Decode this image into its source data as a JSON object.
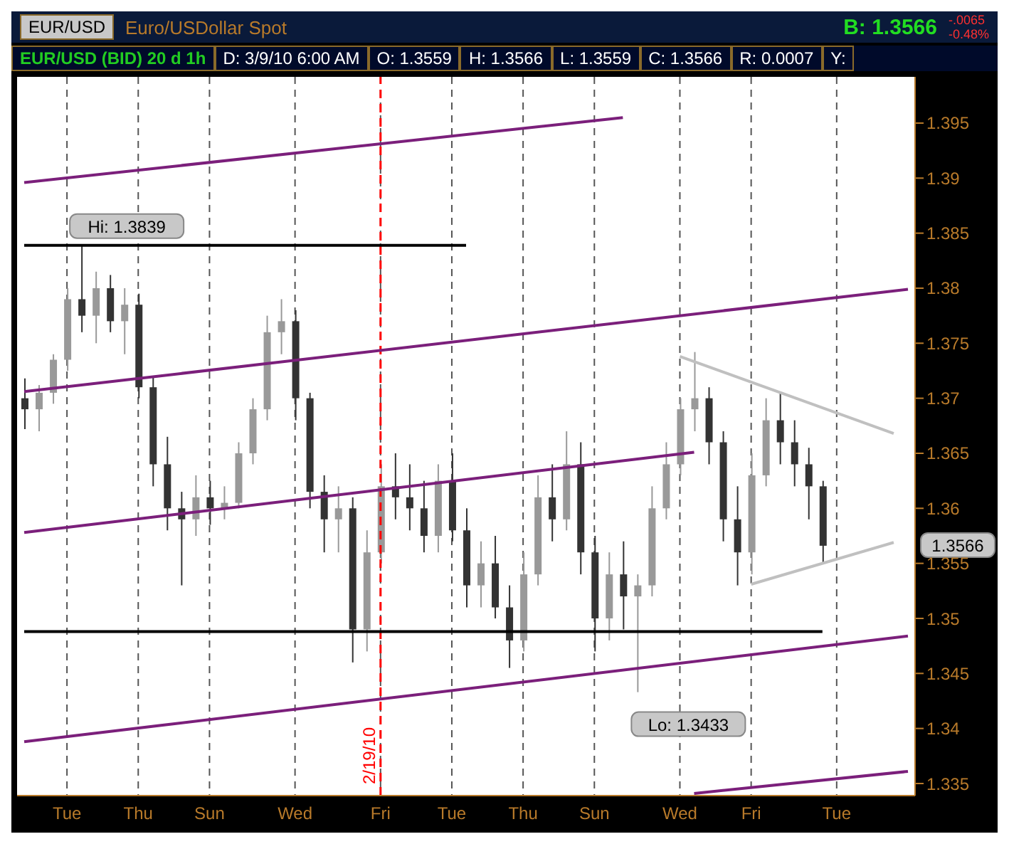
{
  "chart_data": {
    "type": "candlestick",
    "title": "EUR/USD (BID) 20 d 1h",
    "subtitle": "D: 3/9/10 6:00 AM",
    "annotations": [
      "EUR/USD",
      "Euro/USDollar Spot",
      "B: 1.3566",
      "-.0065",
      "-0.48%",
      "O: 1.3559",
      "H: 1.3566",
      "L: 1.3559",
      "C: 1.3566",
      "R: 0.0007",
      "Y:",
      "Hi: 1.3839",
      "Lo: 1.3433",
      "1.3566"
    ],
    "categories": [
      null,
      null,
      null,
      "Tue",
      null,
      null,
      null,
      null,
      "Thu",
      null,
      null,
      null,
      null,
      "Sun",
      null,
      null,
      null,
      null,
      null,
      "Wed",
      null,
      null,
      null,
      null,
      null,
      "Fri",
      null,
      null,
      null,
      null,
      "Tue",
      null,
      null,
      null,
      null,
      "Thu",
      null,
      null,
      null,
      null,
      "Sun",
      null,
      null,
      null,
      null,
      null,
      "Wed",
      null,
      null,
      null,
      null,
      "Fri",
      null,
      null,
      null,
      null,
      null,
      "Tue",
      null,
      null,
      null,
      null,
      null
    ],
    "ylim": [
      1.3339,
      1.3992
    ],
    "yticks": [
      1.335,
      1.34,
      1.345,
      1.35,
      1.355,
      1.36,
      1.365,
      1.37,
      1.375,
      1.38,
      1.385,
      1.39,
      1.395
    ],
    "grid": "x",
    "ref_lines": [
      {
        "axis": "x",
        "value": "Fri",
        "label": "2/19/10",
        "color": "#ff0000",
        "line_style": "dashed"
      }
    ],
    "series": [
      {
        "colors": [
          "#333333",
          "#999999",
          "#999999",
          "#999999",
          "#333333",
          "#999999",
          "#333333",
          "#999999",
          "#333333",
          "#333333",
          "#333333",
          "#333333",
          "#999999",
          "#333333",
          "#999999",
          "#999999",
          "#999999",
          "#999999",
          "#999999",
          "#333333",
          "#333333",
          "#333333",
          "#999999",
          "#333333",
          "#999999",
          "#999999",
          "#333333",
          "#333333",
          "#333333",
          "#999999",
          "#333333",
          "#333333",
          "#999999",
          "#333333",
          "#333333",
          "#999999",
          "#999999",
          "#333333",
          "#999999",
          "#333333",
          "#333333",
          "#999999",
          "#333333",
          "#999999",
          "#999999",
          "#999999",
          "#999999",
          "#999999",
          "#333333",
          "#333333",
          "#333333",
          "#999999",
          "#999999",
          "#333333",
          "#333333",
          "#333333",
          "#333333",
          null,
          null,
          null,
          null,
          null,
          null
        ],
        "ohlc": [
          [
            1.37,
            1.3718,
            1.3672,
            1.369
          ],
          [
            1.369,
            1.3712,
            1.367,
            1.3705
          ],
          [
            1.3705,
            1.374,
            1.3695,
            1.3735
          ],
          [
            1.3735,
            1.38,
            1.3725,
            1.379
          ],
          [
            1.379,
            1.3839,
            1.376,
            1.3775
          ],
          [
            1.3775,
            1.3815,
            1.375,
            1.38
          ],
          [
            1.38,
            1.3812,
            1.376,
            1.377
          ],
          [
            1.377,
            1.38,
            1.374,
            1.3785
          ],
          [
            1.3785,
            1.3795,
            1.37,
            1.371
          ],
          [
            1.371,
            1.372,
            1.362,
            1.364
          ],
          [
            1.364,
            1.3665,
            1.358,
            1.36
          ],
          [
            1.36,
            1.3615,
            1.353,
            1.359
          ],
          [
            1.359,
            1.363,
            1.3575,
            1.361
          ],
          [
            1.361,
            1.3625,
            1.3585,
            1.36
          ],
          [
            1.36,
            1.362,
            1.359,
            1.3605
          ],
          [
            1.3605,
            1.366,
            1.36,
            1.365
          ],
          [
            1.365,
            1.37,
            1.364,
            1.369
          ],
          [
            1.369,
            1.3775,
            1.368,
            1.376
          ],
          [
            1.376,
            1.379,
            1.374,
            1.377
          ],
          [
            1.377,
            1.378,
            1.368,
            1.37
          ],
          [
            1.37,
            1.3705,
            1.36,
            1.3615
          ],
          [
            1.3615,
            1.363,
            1.356,
            1.359
          ],
          [
            1.359,
            1.362,
            1.356,
            1.36
          ],
          [
            1.36,
            1.361,
            1.346,
            1.349
          ],
          [
            1.349,
            1.358,
            1.347,
            1.356
          ],
          [
            1.356,
            1.364,
            1.355,
            1.362
          ],
          [
            1.362,
            1.365,
            1.359,
            1.361
          ],
          [
            1.361,
            1.364,
            1.358,
            1.36
          ],
          [
            1.36,
            1.3625,
            1.356,
            1.3575
          ],
          [
            1.3575,
            1.364,
            1.356,
            1.3625
          ],
          [
            1.3625,
            1.365,
            1.357,
            1.358
          ],
          [
            1.358,
            1.36,
            1.351,
            1.353
          ],
          [
            1.353,
            1.357,
            1.351,
            1.355
          ],
          [
            1.355,
            1.3575,
            1.35,
            1.351
          ],
          [
            1.351,
            1.353,
            1.3455,
            1.348
          ],
          [
            1.348,
            1.356,
            1.347,
            1.354
          ],
          [
            1.354,
            1.363,
            1.353,
            1.361
          ],
          [
            1.361,
            1.364,
            1.357,
            1.359
          ],
          [
            1.359,
            1.367,
            1.358,
            1.364
          ],
          [
            1.364,
            1.366,
            1.354,
            1.356
          ],
          [
            1.356,
            1.3575,
            1.347,
            1.35
          ],
          [
            1.35,
            1.356,
            1.348,
            1.354
          ],
          [
            1.354,
            1.357,
            1.349,
            1.352
          ],
          [
            1.352,
            1.354,
            1.3433,
            1.353
          ],
          [
            1.353,
            1.362,
            1.352,
            1.36
          ],
          [
            1.36,
            1.366,
            1.359,
            1.364
          ],
          [
            1.364,
            1.37,
            1.363,
            1.369
          ],
          [
            1.369,
            1.3742,
            1.367,
            1.37
          ],
          [
            1.37,
            1.371,
            1.364,
            1.366
          ],
          [
            1.366,
            1.367,
            1.357,
            1.359
          ],
          [
            1.359,
            1.362,
            1.353,
            1.356
          ],
          [
            1.356,
            1.365,
            1.354,
            1.363
          ],
          [
            1.363,
            1.37,
            1.362,
            1.368
          ],
          [
            1.368,
            1.3705,
            1.364,
            1.366
          ],
          [
            1.366,
            1.368,
            1.362,
            1.364
          ],
          [
            1.364,
            1.3655,
            1.359,
            1.362
          ],
          [
            1.362,
            1.3625,
            1.355,
            1.3566
          ],
          null,
          null,
          null,
          null,
          null,
          null
        ]
      },
      {
        "type": "line",
        "color": "#7b1f7b",
        "values": [
          1.3896,
          null,
          null,
          null,
          null,
          null,
          null,
          null,
          null,
          null,
          null,
          null,
          null,
          null,
          null,
          null,
          null,
          null,
          null,
          null,
          null,
          null,
          null,
          null,
          null,
          null,
          null,
          null,
          null,
          null,
          null,
          null,
          null,
          null,
          null,
          null,
          null,
          null,
          null,
          null,
          null,
          null,
          1.3955,
          null,
          null,
          null,
          null,
          null,
          null,
          null,
          null,
          null,
          null,
          null,
          null,
          null,
          null,
          null,
          null,
          null,
          null,
          null,
          null
        ]
      },
      {
        "type": "line",
        "color": "#7b1f7b",
        "values": [
          1.3706,
          null,
          null,
          null,
          null,
          null,
          null,
          null,
          null,
          null,
          null,
          null,
          null,
          null,
          null,
          null,
          null,
          null,
          null,
          null,
          null,
          null,
          null,
          null,
          null,
          null,
          null,
          null,
          null,
          null,
          null,
          null,
          null,
          null,
          null,
          null,
          null,
          null,
          null,
          null,
          null,
          null,
          null,
          null,
          null,
          null,
          null,
          null,
          null,
          null,
          null,
          null,
          null,
          null,
          null,
          null,
          null,
          null,
          null,
          null,
          null,
          null,
          1.3799
        ]
      },
      {
        "type": "line",
        "color": "#7b1f7b",
        "values": [
          1.3578,
          null,
          null,
          null,
          null,
          null,
          null,
          null,
          null,
          null,
          null,
          null,
          null,
          null,
          null,
          null,
          null,
          null,
          null,
          null,
          null,
          null,
          null,
          null,
          null,
          null,
          null,
          null,
          null,
          null,
          null,
          null,
          null,
          null,
          null,
          null,
          null,
          null,
          null,
          null,
          null,
          null,
          null,
          null,
          null,
          null,
          null,
          1.3651,
          null,
          null,
          null,
          null,
          null,
          null,
          null,
          null,
          null,
          null,
          null,
          null,
          null,
          null,
          null
        ]
      },
      {
        "type": "line",
        "color": "#7b1f7b",
        "values": [
          1.3388,
          null,
          null,
          null,
          null,
          null,
          null,
          null,
          null,
          null,
          null,
          null,
          null,
          null,
          null,
          null,
          null,
          null,
          null,
          null,
          null,
          null,
          null,
          null,
          null,
          null,
          null,
          null,
          null,
          null,
          null,
          null,
          null,
          null,
          null,
          null,
          null,
          null,
          null,
          null,
          null,
          null,
          null,
          null,
          null,
          null,
          null,
          null,
          null,
          null,
          null,
          null,
          null,
          null,
          null,
          null,
          null,
          null,
          null,
          null,
          null,
          null,
          1.3484
        ]
      },
      {
        "type": "line",
        "color": "#7b1f7b",
        "values": [
          null,
          null,
          null,
          null,
          null,
          null,
          null,
          null,
          null,
          null,
          null,
          null,
          null,
          null,
          null,
          null,
          null,
          null,
          null,
          null,
          null,
          null,
          null,
          null,
          null,
          null,
          null,
          null,
          null,
          null,
          null,
          null,
          null,
          null,
          null,
          null,
          null,
          null,
          null,
          null,
          null,
          null,
          null,
          null,
          null,
          null,
          null,
          1.3341,
          null,
          null,
          null,
          null,
          null,
          null,
          null,
          null,
          null,
          null,
          null,
          null,
          null,
          null,
          1.3361
        ]
      },
      {
        "type": "line",
        "color": "#000000",
        "values": [
          1.3488,
          null,
          null,
          null,
          null,
          null,
          null,
          null,
          null,
          null,
          null,
          null,
          null,
          null,
          null,
          null,
          null,
          null,
          null,
          null,
          null,
          null,
          null,
          null,
          null,
          null,
          null,
          null,
          null,
          null,
          null,
          null,
          null,
          null,
          null,
          null,
          null,
          null,
          null,
          null,
          null,
          null,
          null,
          null,
          null,
          null,
          null,
          null,
          null,
          null,
          null,
          null,
          null,
          null,
          null,
          null,
          1.3488,
          null,
          null,
          null,
          null,
          null,
          null
        ]
      },
      {
        "type": "line",
        "color": "#000000",
        "values": [
          1.3839,
          null,
          null,
          null,
          null,
          null,
          null,
          null,
          null,
          null,
          null,
          null,
          null,
          null,
          null,
          null,
          null,
          null,
          null,
          null,
          null,
          null,
          null,
          null,
          null,
          null,
          null,
          null,
          null,
          null,
          null,
          1.3839,
          null,
          null,
          null,
          null,
          null,
          null,
          null,
          null,
          null,
          null,
          null,
          null,
          null,
          null,
          null,
          null,
          null,
          null,
          null,
          null,
          null,
          null,
          null,
          null,
          null,
          null,
          null,
          null,
          null,
          null,
          null
        ]
      },
      {
        "type": "line",
        "color": "#c0c0c0",
        "values": [
          null,
          null,
          null,
          null,
          null,
          null,
          null,
          null,
          null,
          null,
          null,
          null,
          null,
          null,
          null,
          null,
          null,
          null,
          null,
          null,
          null,
          null,
          null,
          null,
          null,
          null,
          null,
          null,
          null,
          null,
          null,
          null,
          null,
          null,
          null,
          null,
          null,
          null,
          null,
          null,
          null,
          null,
          null,
          null,
          null,
          null,
          1.3738,
          null,
          null,
          null,
          null,
          null,
          null,
          null,
          null,
          null,
          null,
          null,
          null,
          null,
          null,
          1.3668,
          null
        ]
      },
      {
        "type": "line",
        "color": "#c0c0c0",
        "values": [
          null,
          null,
          null,
          null,
          null,
          null,
          null,
          null,
          null,
          null,
          null,
          null,
          null,
          null,
          null,
          null,
          null,
          null,
          null,
          null,
          null,
          null,
          null,
          null,
          null,
          null,
          null,
          null,
          null,
          null,
          null,
          null,
          null,
          null,
          null,
          null,
          null,
          null,
          null,
          null,
          null,
          null,
          null,
          null,
          null,
          null,
          null,
          null,
          null,
          null,
          null,
          1.3531,
          null,
          null,
          null,
          null,
          null,
          null,
          null,
          null,
          null,
          1.3569,
          null
        ]
      }
    ]
  }
}
